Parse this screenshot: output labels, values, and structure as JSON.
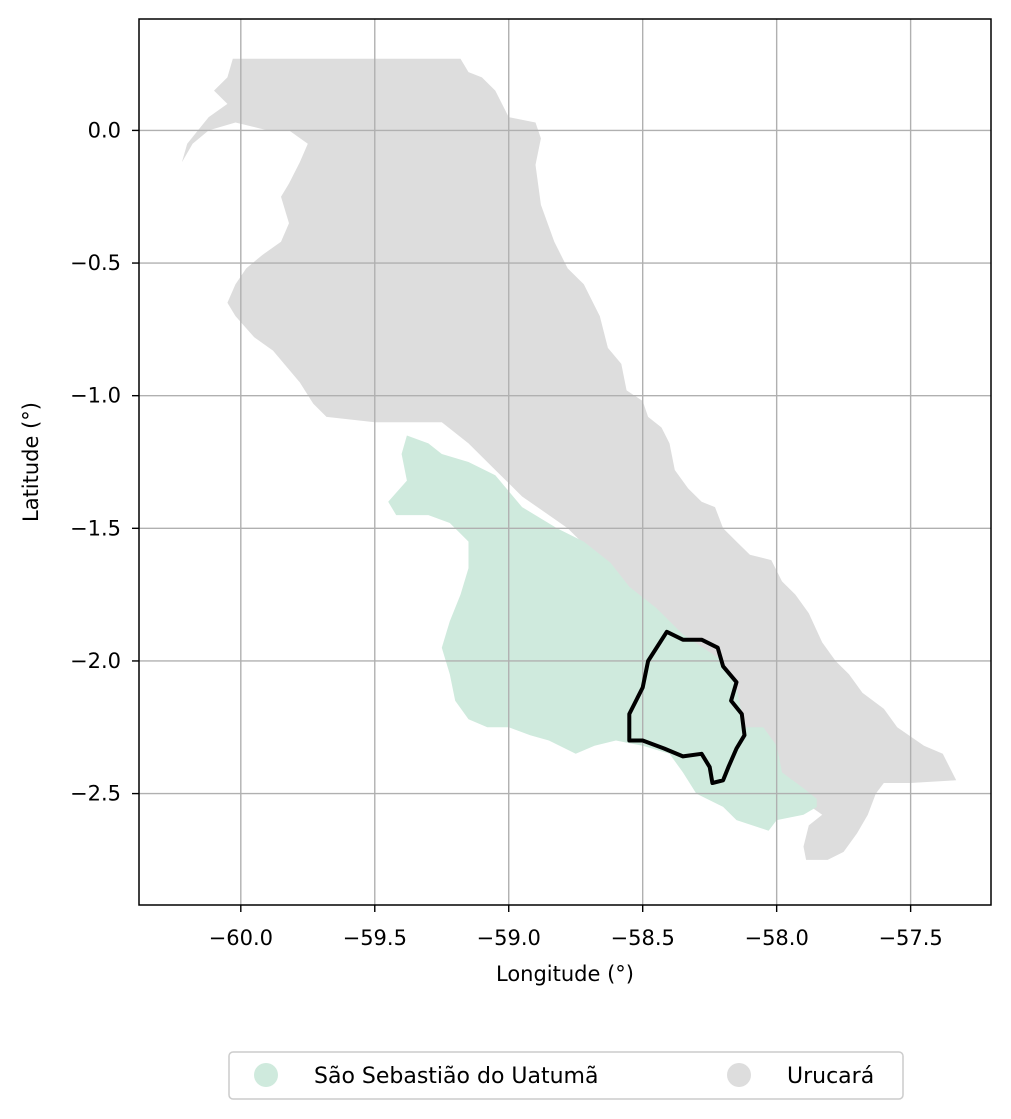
{
  "map": {
    "xlabel": "Longitude (°)",
    "ylabel": "Latitude (°)",
    "xlim": [
      -60.38,
      -57.2
    ],
    "ylim": [
      -2.92,
      0.42
    ],
    "grid": true,
    "x_ticks": [
      {
        "value": -60.0,
        "label": "−60.0"
      },
      {
        "value": -59.5,
        "label": "−59.5"
      },
      {
        "value": -59.0,
        "label": "−59.0"
      },
      {
        "value": -58.5,
        "label": "−58.5"
      },
      {
        "value": -58.0,
        "label": "−58.0"
      },
      {
        "value": -57.5,
        "label": "−57.5"
      }
    ],
    "y_ticks": [
      {
        "value": 0.0,
        "label": "0.0"
      },
      {
        "value": -0.5,
        "label": "−0.5"
      },
      {
        "value": -1.0,
        "label": "−1.0"
      },
      {
        "value": -1.5,
        "label": "−1.5"
      },
      {
        "value": -2.0,
        "label": "−2.0"
      },
      {
        "value": -2.5,
        "label": "−2.5"
      }
    ],
    "legend_position": "bottom-center",
    "regions": [
      {
        "name": "Urucará",
        "color": "#dddddd",
        "outline": [
          [
            -60.03,
            0.27
          ],
          [
            -59.18,
            0.27
          ],
          [
            -59.15,
            0.22
          ],
          [
            -59.1,
            0.2
          ],
          [
            -59.05,
            0.15
          ],
          [
            -59.0,
            0.05
          ],
          [
            -58.9,
            0.03
          ],
          [
            -58.88,
            -0.03
          ],
          [
            -58.9,
            -0.13
          ],
          [
            -58.88,
            -0.28
          ],
          [
            -58.83,
            -0.42
          ],
          [
            -58.78,
            -0.52
          ],
          [
            -58.72,
            -0.58
          ],
          [
            -58.66,
            -0.7
          ],
          [
            -58.63,
            -0.82
          ],
          [
            -58.58,
            -0.88
          ],
          [
            -58.56,
            -0.98
          ],
          [
            -58.5,
            -1.02
          ],
          [
            -58.48,
            -1.08
          ],
          [
            -58.43,
            -1.12
          ],
          [
            -58.4,
            -1.18
          ],
          [
            -58.38,
            -1.28
          ],
          [
            -58.33,
            -1.35
          ],
          [
            -58.28,
            -1.4
          ],
          [
            -58.23,
            -1.42
          ],
          [
            -58.2,
            -1.5
          ],
          [
            -58.15,
            -1.55
          ],
          [
            -58.1,
            -1.6
          ],
          [
            -58.02,
            -1.62
          ],
          [
            -57.98,
            -1.7
          ],
          [
            -57.93,
            -1.75
          ],
          [
            -57.88,
            -1.82
          ],
          [
            -57.83,
            -1.93
          ],
          [
            -57.78,
            -2.0
          ],
          [
            -57.73,
            -2.05
          ],
          [
            -57.68,
            -2.12
          ],
          [
            -57.6,
            -2.18
          ],
          [
            -57.55,
            -2.25
          ],
          [
            -57.45,
            -2.32
          ],
          [
            -57.38,
            -2.35
          ],
          [
            -57.33,
            -2.45
          ],
          [
            -57.5,
            -2.46
          ],
          [
            -57.6,
            -2.46
          ],
          [
            -57.63,
            -2.5
          ],
          [
            -57.66,
            -2.58
          ],
          [
            -57.7,
            -2.65
          ],
          [
            -57.75,
            -2.72
          ],
          [
            -57.81,
            -2.75
          ],
          [
            -57.89,
            -2.75
          ],
          [
            -57.9,
            -2.7
          ],
          [
            -57.88,
            -2.62
          ],
          [
            -57.83,
            -2.58
          ],
          [
            -57.9,
            -2.53
          ],
          [
            -57.93,
            -2.5
          ],
          [
            -57.98,
            -2.48
          ],
          [
            -58.05,
            -2.42
          ],
          [
            -58.1,
            -2.33
          ],
          [
            -58.18,
            -2.25
          ],
          [
            -58.25,
            -2.12
          ],
          [
            -58.3,
            -2.05
          ],
          [
            -58.35,
            -1.98
          ],
          [
            -58.45,
            -1.88
          ],
          [
            -58.55,
            -1.75
          ],
          [
            -58.62,
            -1.68
          ],
          [
            -58.7,
            -1.58
          ],
          [
            -58.78,
            -1.5
          ],
          [
            -58.85,
            -1.45
          ],
          [
            -58.95,
            -1.38
          ],
          [
            -59.05,
            -1.28
          ],
          [
            -59.15,
            -1.18
          ],
          [
            -59.25,
            -1.1
          ],
          [
            -59.5,
            -1.1
          ],
          [
            -59.68,
            -1.08
          ],
          [
            -59.73,
            -1.03
          ],
          [
            -59.78,
            -0.95
          ],
          [
            -59.88,
            -0.83
          ],
          [
            -59.95,
            -0.78
          ],
          [
            -60.02,
            -0.7
          ],
          [
            -60.05,
            -0.65
          ],
          [
            -60.02,
            -0.58
          ],
          [
            -59.98,
            -0.52
          ],
          [
            -59.92,
            -0.47
          ],
          [
            -59.85,
            -0.42
          ],
          [
            -59.82,
            -0.35
          ],
          [
            -59.85,
            -0.25
          ],
          [
            -59.82,
            -0.2
          ],
          [
            -59.78,
            -0.12
          ],
          [
            -59.75,
            -0.05
          ],
          [
            -59.82,
            0.0
          ],
          [
            -59.9,
            0.0
          ],
          [
            -60.02,
            0.03
          ],
          [
            -60.12,
            0.0
          ],
          [
            -60.18,
            -0.05
          ],
          [
            -60.22,
            -0.12
          ],
          [
            -60.2,
            -0.05
          ],
          [
            -60.12,
            0.05
          ],
          [
            -60.05,
            0.1
          ],
          [
            -60.1,
            0.15
          ],
          [
            -60.05,
            0.2
          ]
        ]
      },
      {
        "name": "São Sebastião do Uatumã",
        "color": "#cfeadd",
        "outline": [
          [
            -59.38,
            -1.15
          ],
          [
            -59.3,
            -1.18
          ],
          [
            -59.25,
            -1.22
          ],
          [
            -59.15,
            -1.25
          ],
          [
            -59.05,
            -1.3
          ],
          [
            -58.95,
            -1.42
          ],
          [
            -58.82,
            -1.5
          ],
          [
            -58.72,
            -1.55
          ],
          [
            -58.62,
            -1.63
          ],
          [
            -58.55,
            -1.72
          ],
          [
            -58.45,
            -1.8
          ],
          [
            -58.35,
            -1.9
          ],
          [
            -58.2,
            -2.0
          ],
          [
            -58.15,
            -2.1
          ],
          [
            -58.12,
            -2.25
          ],
          [
            -58.05,
            -2.25
          ],
          [
            -58.0,
            -2.32
          ],
          [
            -57.98,
            -2.42
          ],
          [
            -57.9,
            -2.48
          ],
          [
            -57.85,
            -2.52
          ],
          [
            -57.85,
            -2.55
          ],
          [
            -57.9,
            -2.58
          ],
          [
            -58.0,
            -2.6
          ],
          [
            -58.03,
            -2.64
          ],
          [
            -58.15,
            -2.6
          ],
          [
            -58.2,
            -2.55
          ],
          [
            -58.3,
            -2.5
          ],
          [
            -58.35,
            -2.42
          ],
          [
            -58.4,
            -2.35
          ],
          [
            -58.5,
            -2.32
          ],
          [
            -58.6,
            -2.3
          ],
          [
            -58.68,
            -2.32
          ],
          [
            -58.75,
            -2.35
          ],
          [
            -58.85,
            -2.3
          ],
          [
            -58.92,
            -2.28
          ],
          [
            -59.0,
            -2.25
          ],
          [
            -59.08,
            -2.25
          ],
          [
            -59.15,
            -2.22
          ],
          [
            -59.2,
            -2.15
          ],
          [
            -59.22,
            -2.05
          ],
          [
            -59.25,
            -1.95
          ],
          [
            -59.22,
            -1.85
          ],
          [
            -59.18,
            -1.75
          ],
          [
            -59.15,
            -1.65
          ],
          [
            -59.15,
            -1.55
          ],
          [
            -59.22,
            -1.48
          ],
          [
            -59.3,
            -1.45
          ],
          [
            -59.42,
            -1.45
          ],
          [
            -59.45,
            -1.4
          ],
          [
            -59.38,
            -1.32
          ],
          [
            -59.4,
            -1.22
          ]
        ]
      }
    ],
    "boundary": {
      "color": "#000000",
      "outline": [
        [
          -58.41,
          -1.89
        ],
        [
          -58.35,
          -1.92
        ],
        [
          -58.28,
          -1.92
        ],
        [
          -58.22,
          -1.95
        ],
        [
          -58.2,
          -2.02
        ],
        [
          -58.15,
          -2.08
        ],
        [
          -58.17,
          -2.15
        ],
        [
          -58.13,
          -2.2
        ],
        [
          -58.12,
          -2.28
        ],
        [
          -58.15,
          -2.33
        ],
        [
          -58.18,
          -2.4
        ],
        [
          -58.2,
          -2.45
        ],
        [
          -58.24,
          -2.46
        ],
        [
          -58.25,
          -2.4
        ],
        [
          -58.28,
          -2.35
        ],
        [
          -58.35,
          -2.36
        ],
        [
          -58.42,
          -2.33
        ],
        [
          -58.5,
          -2.3
        ],
        [
          -58.55,
          -2.3
        ],
        [
          -58.55,
          -2.2
        ],
        [
          -58.5,
          -2.1
        ],
        [
          -58.48,
          -2.0
        ]
      ]
    }
  },
  "legend": {
    "entries": [
      {
        "label": "São Sebastião do Uatumã",
        "color": "#cfeadd"
      },
      {
        "label": "Urucará",
        "color": "#dddddd"
      }
    ]
  }
}
